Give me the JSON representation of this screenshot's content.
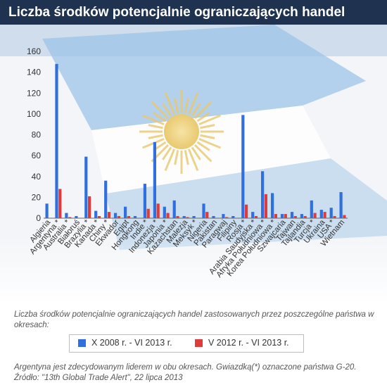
{
  "header": {
    "title": "Liczba środków potencjalnie ograniczających handel"
  },
  "caption": "Liczba środków potencjalnie ograniczających handel zastosowanych przez poszczególne państwa w okresach:",
  "legend": {
    "series_a": "X 2008 r. - VI 2013 r.",
    "series_b": "V 2012 r. - VI 2013 r."
  },
  "footnote": {
    "line1": "Argentyna jest zdecydowanym liderem w obu okresach. Gwiazdką(*) oznaczone państwa G-20.",
    "line2": "Źródło: \"13th Global Trade Alert\", 22 lipca 2013"
  },
  "colors": {
    "series_a": "#2f6fe0",
    "series_b": "#e03b3b",
    "header": "#1f3350",
    "flag_blue": "#9ec3e8",
    "sun": "#f2d98a"
  },
  "chart_data": {
    "type": "bar",
    "title": "Liczba środków potencjalnie ograniczających handel",
    "ylim": [
      0,
      160
    ],
    "yticks": [
      0,
      20,
      40,
      60,
      80,
      100,
      120,
      140,
      160
    ],
    "grid": false,
    "legend_position": "bottom",
    "categories": [
      "Algieria",
      "Argentyna *",
      "Australia *",
      "Białoruś",
      "Brazylia *",
      "Kanada *",
      "Chiny *",
      "Ekwador",
      "Egipt",
      "Hongkong",
      "Indie *",
      "Indonezja *",
      "Japonia *",
      "Kazachstan",
      "Malezja",
      "Meksyk *",
      "Nigeria",
      "Pakistan",
      "Paragwaj",
      "Filipiny",
      "Rosja *",
      "Arabia Saudyjska *",
      "Afryka Południowa *",
      "Korea Południowa *",
      "Szwajcaria",
      "Tajwan",
      "Tajlandia",
      "Turcja *",
      "Ukraina",
      "USA *",
      "Wietnam"
    ],
    "series": [
      {
        "name": "X 2008 r. - VI 2013 r.",
        "values": [
          14,
          148,
          5,
          2,
          59,
          7,
          36,
          5,
          11,
          2,
          33,
          73,
          11,
          17,
          2,
          2,
          14,
          2,
          4,
          2,
          99,
          6,
          45,
          24,
          4,
          6,
          4,
          17,
          8,
          10,
          25
        ]
      },
      {
        "name": "V 2012 r. - VI 2013 r.",
        "values": [
          0,
          28,
          1,
          0,
          21,
          2,
          6,
          2,
          2,
          0,
          9,
          14,
          5,
          2,
          1,
          0,
          6,
          0,
          1,
          0,
          13,
          2,
          23,
          4,
          4,
          2,
          2,
          5,
          6,
          2,
          3
        ]
      }
    ]
  }
}
